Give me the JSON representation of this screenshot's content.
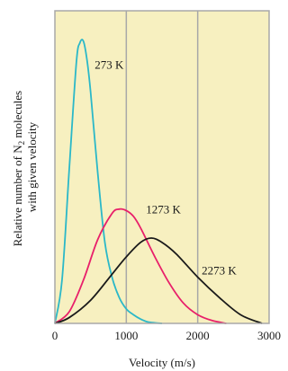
{
  "chart_data": {
    "type": "line",
    "title": "",
    "xlabel": "Velocity (m/s)",
    "ylabel_lines": [
      "Relative number of N",
      "2",
      " molecules",
      "with given velocity"
    ],
    "xlim": [
      0,
      3000
    ],
    "ylim": [
      0,
      1
    ],
    "x_ticks": [
      0,
      1000,
      2000,
      3000
    ],
    "x_tick_labels": [
      "0",
      "1000",
      "2000",
      "3000"
    ],
    "y_ticks_shown": false,
    "grid": "vertical lines at 1000 and 2000",
    "colors": {
      "plot_background": "#f7f0c0",
      "frame": "#a8a8a8",
      "gridline": "#a8a8a8"
    },
    "series": [
      {
        "name": "273 K",
        "color": "#2bb8c8",
        "x": [
          0,
          100,
          200,
          300,
          350,
          400,
          450,
          500,
          600,
          700,
          800,
          900,
          1000,
          1100,
          1200,
          1300,
          1400,
          1500
        ],
        "y": [
          0,
          0.15,
          0.53,
          0.9,
          0.97,
          0.975,
          0.91,
          0.8,
          0.52,
          0.28,
          0.16,
          0.09,
          0.05,
          0.03,
          0.015,
          0.005,
          0.002,
          0
        ]
      },
      {
        "name": "1273 K",
        "color": "#e8206a",
        "x": [
          0,
          200,
          400,
          600,
          800,
          900,
          1000,
          1100,
          1200,
          1400,
          1600,
          1800,
          2000,
          2200,
          2400
        ],
        "y": [
          0,
          0.04,
          0.15,
          0.29,
          0.38,
          0.395,
          0.39,
          0.37,
          0.33,
          0.23,
          0.14,
          0.07,
          0.03,
          0.01,
          0
        ]
      },
      {
        "name": "2273 K",
        "color": "#1a1a1a",
        "x": [
          0,
          200,
          500,
          800,
          1000,
          1200,
          1350,
          1500,
          1700,
          2000,
          2300,
          2600,
          2900
        ],
        "y": [
          0,
          0.02,
          0.08,
          0.17,
          0.23,
          0.28,
          0.295,
          0.28,
          0.24,
          0.16,
          0.09,
          0.03,
          0
        ]
      }
    ],
    "annotations": [
      {
        "text": "273 K",
        "x": 760,
        "y": 0.88
      },
      {
        "text": "1273 K",
        "x": 1520,
        "y": 0.38
      },
      {
        "text": "2273 K",
        "x": 2300,
        "y": 0.17
      }
    ]
  }
}
